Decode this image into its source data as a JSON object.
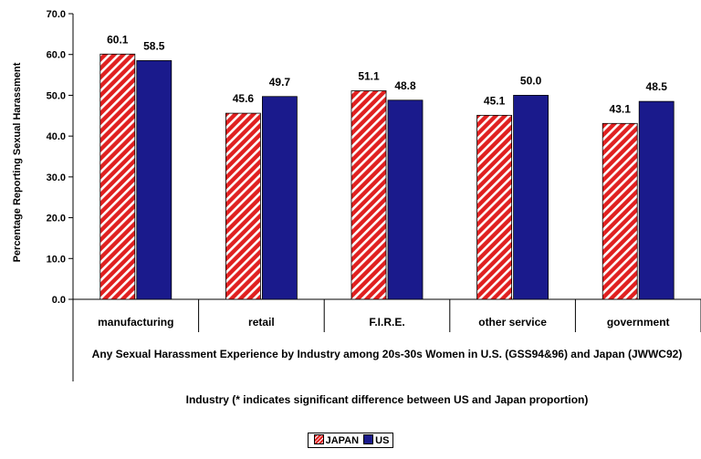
{
  "chart_data": {
    "type": "bar",
    "categories": [
      "manufacturing",
      "retail",
      "F.I.R.E.",
      "other service",
      "government"
    ],
    "series": [
      {
        "name": "JAPAN",
        "values": [
          60.1,
          45.6,
          51.1,
          45.1,
          43.1
        ],
        "labels": [
          "60.1",
          "45.6",
          "51.1",
          "45.1",
          "43.1"
        ],
        "color": "#e02020"
      },
      {
        "name": "US",
        "values": [
          58.5,
          49.7,
          48.8,
          50.0,
          48.5
        ],
        "labels": [
          "58.5",
          "49.7",
          "48.8",
          "50.0",
          "48.5"
        ],
        "color": "#1a1a8c"
      }
    ],
    "ylabel": "Percentage Reporting Sexual Harassment",
    "ylim": [
      0,
      70
    ],
    "yticks": [
      "0.0",
      "10.0",
      "20.0",
      "30.0",
      "40.0",
      "50.0",
      "60.0",
      "70.0"
    ],
    "caption": "Any Sexual Harassment Experience by Industry among 20s-30s Women in U.S. (GSS94&96) and Japan (JWWC92)",
    "xlabel": "Industry (* indicates significant difference between US and Japan proportion)",
    "legend_position": "bottom",
    "grid": false
  }
}
